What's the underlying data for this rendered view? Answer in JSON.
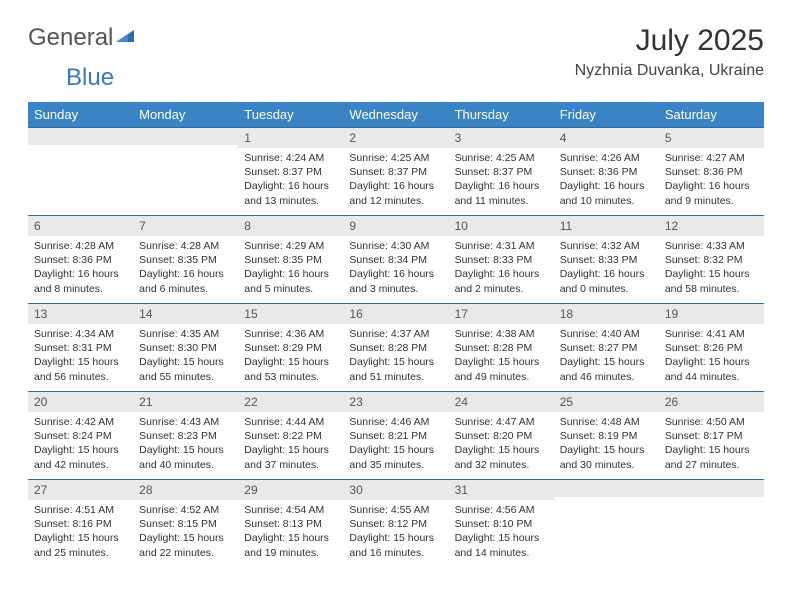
{
  "logo": {
    "word1": "General",
    "word2": "Blue"
  },
  "title": "July 2025",
  "location": "Nyzhnia Duvanka, Ukraine",
  "colors": {
    "header_bg": "#3a83c4",
    "header_text": "#ffffff",
    "daynum_bg": "#e9e9e9",
    "daynum_border": "#2f6a9c",
    "body_text": "#333333",
    "logo_gray": "#555555",
    "logo_blue": "#3a7ab8"
  },
  "days_of_week": [
    "Sunday",
    "Monday",
    "Tuesday",
    "Wednesday",
    "Thursday",
    "Friday",
    "Saturday"
  ],
  "weeks": [
    [
      {
        "n": "",
        "sr": "",
        "ss": "",
        "dl": ""
      },
      {
        "n": "",
        "sr": "",
        "ss": "",
        "dl": ""
      },
      {
        "n": "1",
        "sr": "Sunrise: 4:24 AM",
        "ss": "Sunset: 8:37 PM",
        "dl": "Daylight: 16 hours and 13 minutes."
      },
      {
        "n": "2",
        "sr": "Sunrise: 4:25 AM",
        "ss": "Sunset: 8:37 PM",
        "dl": "Daylight: 16 hours and 12 minutes."
      },
      {
        "n": "3",
        "sr": "Sunrise: 4:25 AM",
        "ss": "Sunset: 8:37 PM",
        "dl": "Daylight: 16 hours and 11 minutes."
      },
      {
        "n": "4",
        "sr": "Sunrise: 4:26 AM",
        "ss": "Sunset: 8:36 PM",
        "dl": "Daylight: 16 hours and 10 minutes."
      },
      {
        "n": "5",
        "sr": "Sunrise: 4:27 AM",
        "ss": "Sunset: 8:36 PM",
        "dl": "Daylight: 16 hours and 9 minutes."
      }
    ],
    [
      {
        "n": "6",
        "sr": "Sunrise: 4:28 AM",
        "ss": "Sunset: 8:36 PM",
        "dl": "Daylight: 16 hours and 8 minutes."
      },
      {
        "n": "7",
        "sr": "Sunrise: 4:28 AM",
        "ss": "Sunset: 8:35 PM",
        "dl": "Daylight: 16 hours and 6 minutes."
      },
      {
        "n": "8",
        "sr": "Sunrise: 4:29 AM",
        "ss": "Sunset: 8:35 PM",
        "dl": "Daylight: 16 hours and 5 minutes."
      },
      {
        "n": "9",
        "sr": "Sunrise: 4:30 AM",
        "ss": "Sunset: 8:34 PM",
        "dl": "Daylight: 16 hours and 3 minutes."
      },
      {
        "n": "10",
        "sr": "Sunrise: 4:31 AM",
        "ss": "Sunset: 8:33 PM",
        "dl": "Daylight: 16 hours and 2 minutes."
      },
      {
        "n": "11",
        "sr": "Sunrise: 4:32 AM",
        "ss": "Sunset: 8:33 PM",
        "dl": "Daylight: 16 hours and 0 minutes."
      },
      {
        "n": "12",
        "sr": "Sunrise: 4:33 AM",
        "ss": "Sunset: 8:32 PM",
        "dl": "Daylight: 15 hours and 58 minutes."
      }
    ],
    [
      {
        "n": "13",
        "sr": "Sunrise: 4:34 AM",
        "ss": "Sunset: 8:31 PM",
        "dl": "Daylight: 15 hours and 56 minutes."
      },
      {
        "n": "14",
        "sr": "Sunrise: 4:35 AM",
        "ss": "Sunset: 8:30 PM",
        "dl": "Daylight: 15 hours and 55 minutes."
      },
      {
        "n": "15",
        "sr": "Sunrise: 4:36 AM",
        "ss": "Sunset: 8:29 PM",
        "dl": "Daylight: 15 hours and 53 minutes."
      },
      {
        "n": "16",
        "sr": "Sunrise: 4:37 AM",
        "ss": "Sunset: 8:28 PM",
        "dl": "Daylight: 15 hours and 51 minutes."
      },
      {
        "n": "17",
        "sr": "Sunrise: 4:38 AM",
        "ss": "Sunset: 8:28 PM",
        "dl": "Daylight: 15 hours and 49 minutes."
      },
      {
        "n": "18",
        "sr": "Sunrise: 4:40 AM",
        "ss": "Sunset: 8:27 PM",
        "dl": "Daylight: 15 hours and 46 minutes."
      },
      {
        "n": "19",
        "sr": "Sunrise: 4:41 AM",
        "ss": "Sunset: 8:26 PM",
        "dl": "Daylight: 15 hours and 44 minutes."
      }
    ],
    [
      {
        "n": "20",
        "sr": "Sunrise: 4:42 AM",
        "ss": "Sunset: 8:24 PM",
        "dl": "Daylight: 15 hours and 42 minutes."
      },
      {
        "n": "21",
        "sr": "Sunrise: 4:43 AM",
        "ss": "Sunset: 8:23 PM",
        "dl": "Daylight: 15 hours and 40 minutes."
      },
      {
        "n": "22",
        "sr": "Sunrise: 4:44 AM",
        "ss": "Sunset: 8:22 PM",
        "dl": "Daylight: 15 hours and 37 minutes."
      },
      {
        "n": "23",
        "sr": "Sunrise: 4:46 AM",
        "ss": "Sunset: 8:21 PM",
        "dl": "Daylight: 15 hours and 35 minutes."
      },
      {
        "n": "24",
        "sr": "Sunrise: 4:47 AM",
        "ss": "Sunset: 8:20 PM",
        "dl": "Daylight: 15 hours and 32 minutes."
      },
      {
        "n": "25",
        "sr": "Sunrise: 4:48 AM",
        "ss": "Sunset: 8:19 PM",
        "dl": "Daylight: 15 hours and 30 minutes."
      },
      {
        "n": "26",
        "sr": "Sunrise: 4:50 AM",
        "ss": "Sunset: 8:17 PM",
        "dl": "Daylight: 15 hours and 27 minutes."
      }
    ],
    [
      {
        "n": "27",
        "sr": "Sunrise: 4:51 AM",
        "ss": "Sunset: 8:16 PM",
        "dl": "Daylight: 15 hours and 25 minutes."
      },
      {
        "n": "28",
        "sr": "Sunrise: 4:52 AM",
        "ss": "Sunset: 8:15 PM",
        "dl": "Daylight: 15 hours and 22 minutes."
      },
      {
        "n": "29",
        "sr": "Sunrise: 4:54 AM",
        "ss": "Sunset: 8:13 PM",
        "dl": "Daylight: 15 hours and 19 minutes."
      },
      {
        "n": "30",
        "sr": "Sunrise: 4:55 AM",
        "ss": "Sunset: 8:12 PM",
        "dl": "Daylight: 15 hours and 16 minutes."
      },
      {
        "n": "31",
        "sr": "Sunrise: 4:56 AM",
        "ss": "Sunset: 8:10 PM",
        "dl": "Daylight: 15 hours and 14 minutes."
      },
      {
        "n": "",
        "sr": "",
        "ss": "",
        "dl": ""
      },
      {
        "n": "",
        "sr": "",
        "ss": "",
        "dl": ""
      }
    ]
  ]
}
